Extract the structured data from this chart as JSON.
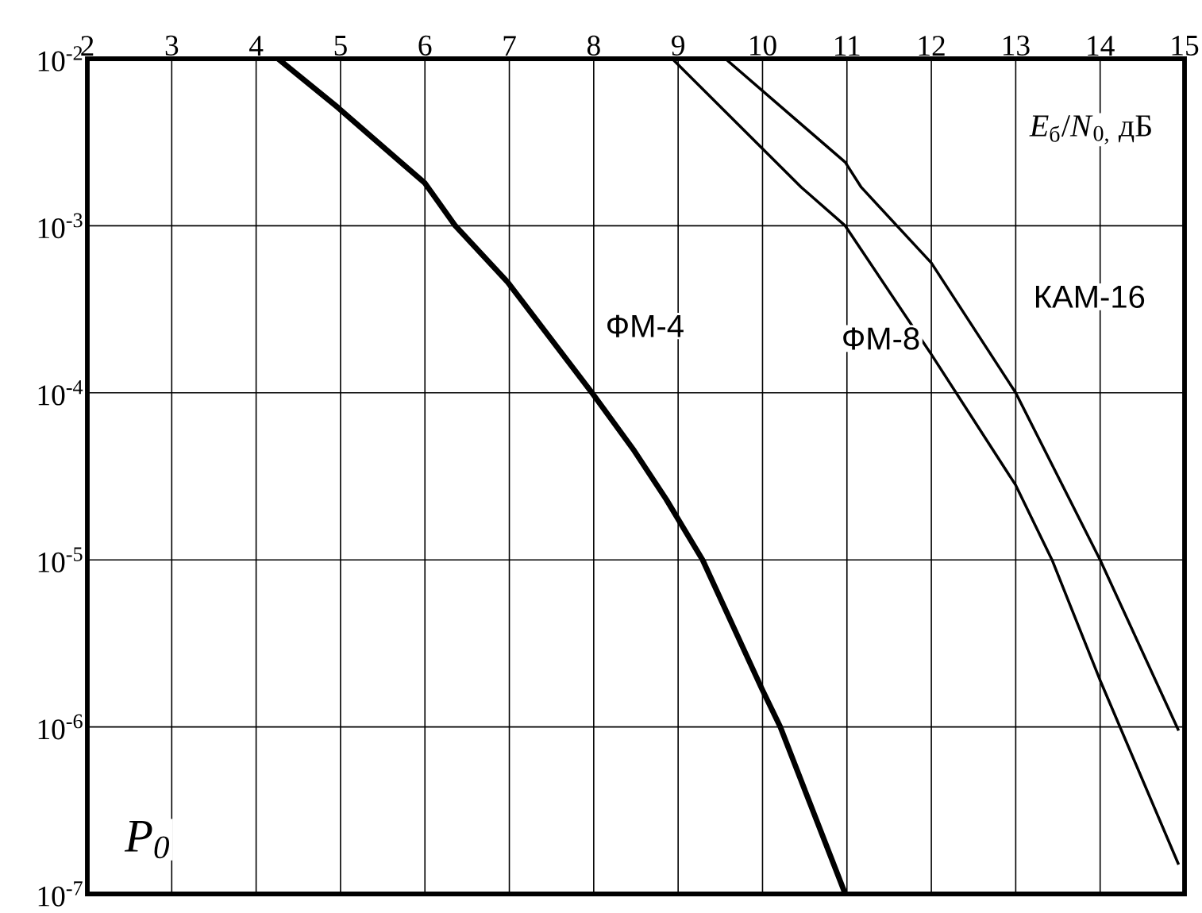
{
  "chart_data": {
    "type": "line",
    "xlabel": "*E*$_{б}$/*N*$_{0,}$ дБ",
    "ylabel": "P$_{0}$",
    "log": "y",
    "grid": true,
    "marker": "none",
    "line_style": "solid",
    "xlim": [
      2,
      15
    ],
    "xticks": [
      2,
      3,
      4,
      5,
      6,
      7,
      8,
      9,
      10,
      11,
      12,
      13,
      14,
      15
    ],
    "ylim": [
      1e-07,
      0.01
    ],
    "yticks": [
      {
        "value": 1e-07,
        "label": "10$^{-7}$"
      },
      {
        "value": 1e-06,
        "label": "10$^{-6}$"
      },
      {
        "value": 1e-05,
        "label": "10$^{-5}$"
      },
      {
        "value": 0.0001,
        "label": "10$^{-4}$"
      },
      {
        "value": 0.001,
        "label": "10$^{-3}$"
      },
      {
        "value": 0.01,
        "label": "10$^{-2}$"
      }
    ],
    "series": [
      {
        "name": "ФМ-4",
        "color": "#000000",
        "x": [
          4.26,
          4.97,
          6.0,
          6.36,
          6.98,
          7.98,
          8.48,
          8.86,
          9.29,
          9.99,
          10.21,
          10.98
        ],
        "values": [
          0.01,
          0.0051,
          0.0018,
          0.001,
          0.00046,
          0.0001,
          4.5e-05,
          2.3e-05,
          1e-05,
          1.7e-06,
          1e-06,
          1e-07
        ]
      },
      {
        "name": "ФМ-8",
        "color": "#000000",
        "x": [
          8.93,
          10.46,
          10.98,
          12.0,
          13.0,
          13.43,
          14.0,
          14.93
        ],
        "values": [
          0.01,
          0.0017,
          0.001,
          0.00017,
          2.8e-05,
          1e-05,
          1.9e-06,
          1.5e-07
        ]
      },
      {
        "name": "КАМ-16",
        "color": "#000000",
        "x": [
          9.56,
          10.98,
          11.17,
          12.0,
          13.0,
          14.0,
          14.93
        ],
        "values": [
          0.01,
          0.0024,
          0.0017,
          0.0006,
          0.0001,
          1e-05,
          9.5e-07
        ]
      }
    ]
  }
}
